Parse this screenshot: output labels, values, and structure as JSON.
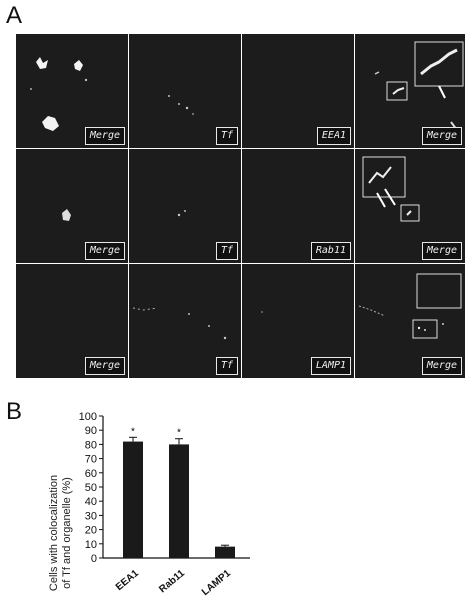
{
  "panel_a": {
    "letter": "A",
    "rows": [
      {
        "labels": [
          "Merge",
          "Tf",
          "EEA1",
          "Merge"
        ]
      },
      {
        "labels": [
          "Merge",
          "Tf",
          "Rab11",
          "Merge"
        ]
      },
      {
        "labels": [
          "Merge",
          "Tf",
          "LAMP1",
          "Merge"
        ]
      }
    ]
  },
  "panel_b": {
    "letter": "B",
    "chart_data": {
      "type": "bar",
      "categories": [
        "EEA1",
        "Rab11",
        "LAMP1"
      ],
      "values": [
        82,
        80,
        8
      ],
      "errors": [
        3,
        4,
        1
      ],
      "significance": [
        "*",
        "*",
        ""
      ],
      "ylabel_line1": "Cells with colocalization",
      "ylabel_line2": "of Tf and organelle (%)",
      "ylim": [
        0,
        100
      ],
      "yticks": [
        "0",
        "10",
        "20",
        "30",
        "40",
        "50",
        "60",
        "70",
        "80",
        "90",
        "100"
      ],
      "bar_color": "#1a1a1a"
    }
  }
}
